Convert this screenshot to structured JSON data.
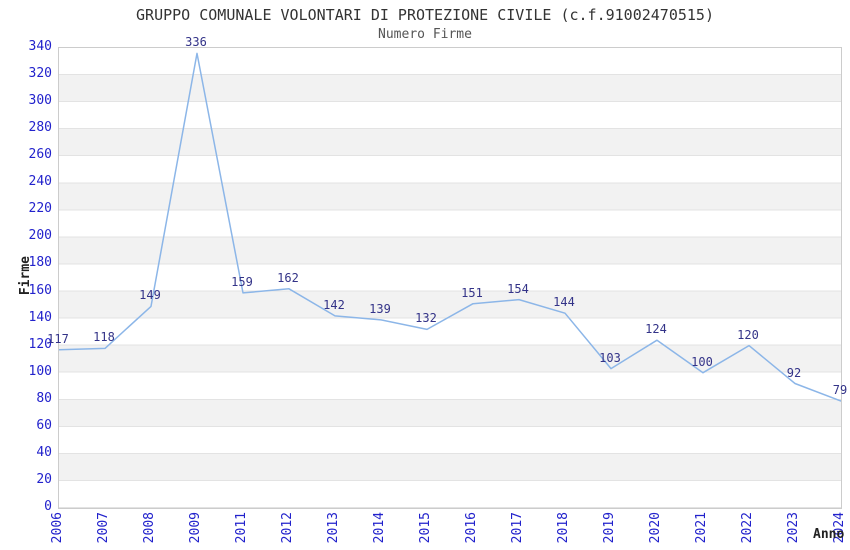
{
  "title": "GRUPPO COMUNALE VOLONTARI DI PROTEZIONE CIVILE (c.f.91002470515)",
  "subtitle": "Numero Firme",
  "axes": {
    "y_label": "Firme",
    "x_label": "Anno"
  },
  "colors": {
    "line": "#8cb6e8",
    "tick_label": "#2222cc",
    "data_label": "#333388",
    "band_gray": "#f2f2f2",
    "grid_line": "#e3e3e3",
    "plot_border": "#cccccc",
    "title_text": "#333333",
    "subtitle_text": "#555555"
  },
  "chart_data": {
    "type": "line",
    "title": "GRUPPO COMUNALE VOLONTARI DI PROTEZIONE CIVILE (c.f.91002470515)",
    "subtitle": "Numero Firme",
    "xlabel": "Anno",
    "ylabel": "Firme",
    "categories": [
      "2006",
      "2007",
      "2008",
      "2009",
      "2011",
      "2012",
      "2013",
      "2014",
      "2015",
      "2016",
      "2017",
      "2018",
      "2019",
      "2020",
      "2021",
      "2022",
      "2023",
      "2024"
    ],
    "values": [
      117,
      118,
      149,
      336,
      159,
      162,
      142,
      139,
      132,
      151,
      154,
      144,
      103,
      124,
      100,
      120,
      92,
      79
    ],
    "ylim": [
      0,
      340
    ],
    "ytick_step": 20,
    "grid": "horizontal-bands",
    "legend": "none",
    "data_labels": "shown above each point"
  }
}
